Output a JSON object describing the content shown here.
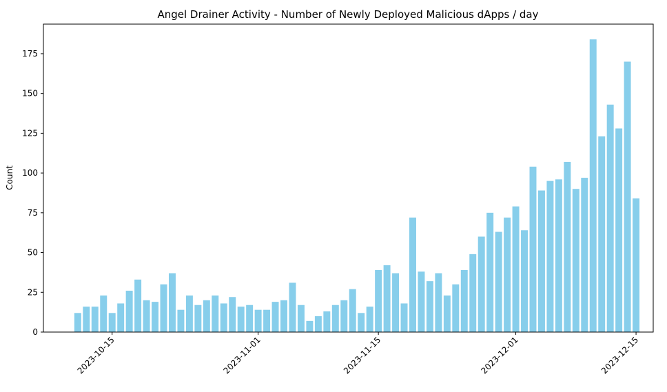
{
  "chart_data": {
    "type": "bar",
    "title": "Angel Drainer Activity - Number of Newly Deployed Malicious dApps / day",
    "xlabel": "",
    "ylabel": "Count",
    "start_date": "2023-10-11",
    "x_ticks": [
      "2023-10-15",
      "2023-11-01",
      "2023-11-15",
      "2023-12-01",
      "2023-12-15"
    ],
    "y_ticks": [
      0,
      25,
      50,
      75,
      100,
      125,
      150,
      175
    ],
    "ylim": [
      0,
      193.6
    ],
    "xlim": [
      "2023-10-07",
      "2023-12-17"
    ],
    "grid": false,
    "bar_color": "#87ceeb",
    "values": [
      12,
      16,
      16,
      23,
      12,
      18,
      26,
      33,
      20,
      19,
      30,
      37,
      14,
      23,
      17,
      20,
      23,
      18,
      22,
      16,
      17,
      14,
      14,
      19,
      20,
      31,
      17,
      7,
      10,
      13,
      17,
      20,
      27,
      12,
      16,
      39,
      42,
      37,
      18,
      72,
      38,
      32,
      37,
      23,
      30,
      39,
      49,
      60,
      75,
      63,
      72,
      79,
      64,
      104,
      89,
      95,
      96,
      107,
      90,
      97,
      184,
      123,
      143,
      128,
      170,
      84
    ]
  }
}
